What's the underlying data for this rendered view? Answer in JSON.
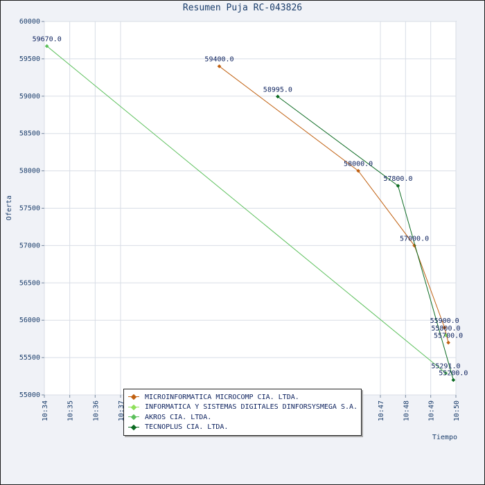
{
  "chart_data": {
    "type": "line",
    "title": "Resumen Puja RC-043826",
    "xlabel": "Tiempo",
    "ylabel": "Oferta",
    "ylim": [
      55000,
      60000
    ],
    "y_ticks": [
      55000,
      55500,
      56000,
      56500,
      57000,
      57500,
      58000,
      58500,
      59000,
      59500,
      60000
    ],
    "x_range": [
      "10:34",
      "10:50"
    ],
    "x_ticks": [
      "10:34",
      "10:35",
      "10:36",
      "10:37",
      "10:47",
      "10:48",
      "10:49",
      "10:50"
    ],
    "grid": true,
    "legend_position": "bottom",
    "series": [
      {
        "name": "MICROINFORMATICA MICROCOMP CIA. LTDA.",
        "color": "#c06010",
        "points": [
          {
            "x": "10:40:48",
            "y": 59400,
            "label": "59400.0"
          },
          {
            "x": "10:46:09",
            "y": 58000,
            "label": "58000.0"
          },
          {
            "x": "10:48:21",
            "y": 57000,
            "label": "57000.0"
          },
          {
            "x": "10:49:33",
            "y": 55900,
            "label": "55900.0"
          },
          {
            "x": "10:49:42",
            "y": 55700,
            "label": "55700.0"
          }
        ]
      },
      {
        "name": "INFORMATICA Y SISTEMAS DIGITALES DINFORSYSMEGA S.A.",
        "color": "#8fe05a",
        "points": [
          {
            "x": "10:49:36",
            "y": 55800,
            "label": "55800.0"
          }
        ]
      },
      {
        "name": "AKROS CIA. LTDA.",
        "color": "#5cc05c",
        "points": [
          {
            "x": "10:34:06",
            "y": 59670,
            "label": "59670.0"
          },
          {
            "x": "10:49:36",
            "y": 55291,
            "label": "55291.0"
          }
        ]
      },
      {
        "name": "TECNOPLUS CIA. LTDA.",
        "color": "#0a6a20",
        "points": [
          {
            "x": "10:43:03",
            "y": 58995,
            "label": "58995.0"
          },
          {
            "x": "10:47:42",
            "y": 57800,
            "label": "57800.0"
          },
          {
            "x": "10:49:54",
            "y": 55200,
            "label": "55200.0"
          }
        ]
      }
    ]
  }
}
